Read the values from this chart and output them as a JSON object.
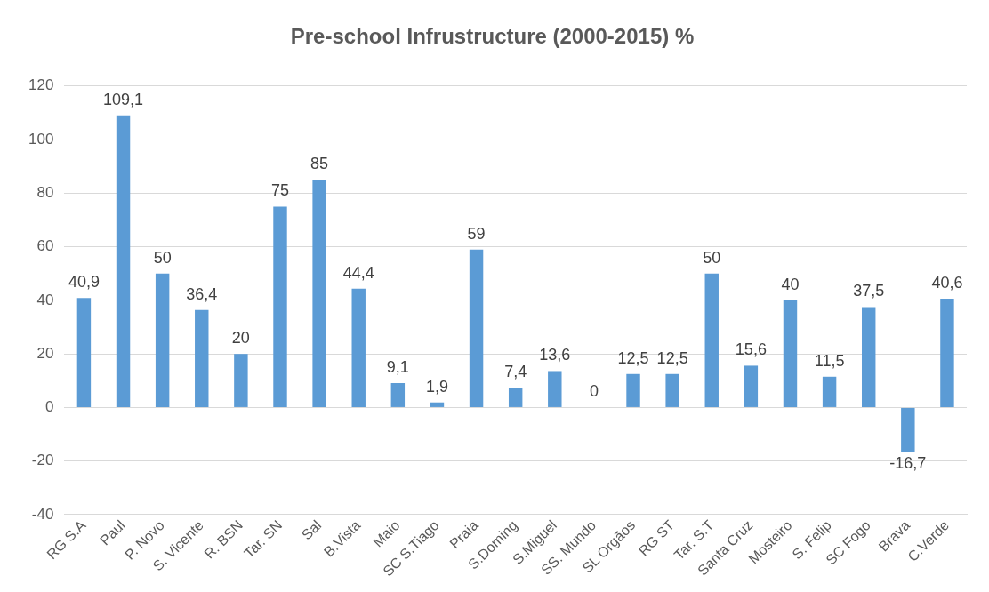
{
  "chart_data": {
    "type": "bar",
    "title": "Pre-school Infrustructure (2000-2015) %",
    "categories": [
      "RG S.A",
      "Paul",
      "P. Novo",
      "S. Vicente",
      "R. BSN",
      "Tar. SN",
      "Sal",
      "B.Vista",
      "Maio",
      "SC S.Tiago",
      "Praia",
      "S.Doming",
      "S.Miguel",
      "SS. Mundo",
      "SL Orgãos",
      "RG ST",
      "Tar. S.T",
      "Santa Cruz",
      "Mosteiro",
      "S. Felip",
      "SC Fogo",
      "Brava",
      "C.Verde"
    ],
    "values": [
      40.9,
      109.1,
      50,
      36.4,
      20,
      75,
      85,
      44.4,
      9.1,
      1.9,
      59,
      7.4,
      13.6,
      0,
      12.5,
      12.5,
      50,
      15.6,
      40,
      11.5,
      37.5,
      -16.7,
      40.6
    ],
    "value_labels": [
      "40,9",
      "109,1",
      "50",
      "36,4",
      "20",
      "75",
      "85",
      "44,4",
      "9,1",
      "1,9",
      "59",
      "7,4",
      "13,6",
      "0",
      "12,5",
      "12,5",
      "50",
      "15,6",
      "40",
      "11,5",
      "37,5",
      "-16,7",
      "40,6"
    ],
    "color": "#5b9bd5",
    "ylim": [
      -40,
      120
    ],
    "yticks": [
      -40,
      -20,
      0,
      20,
      40,
      60,
      80,
      100,
      120
    ],
    "grid": "y"
  }
}
